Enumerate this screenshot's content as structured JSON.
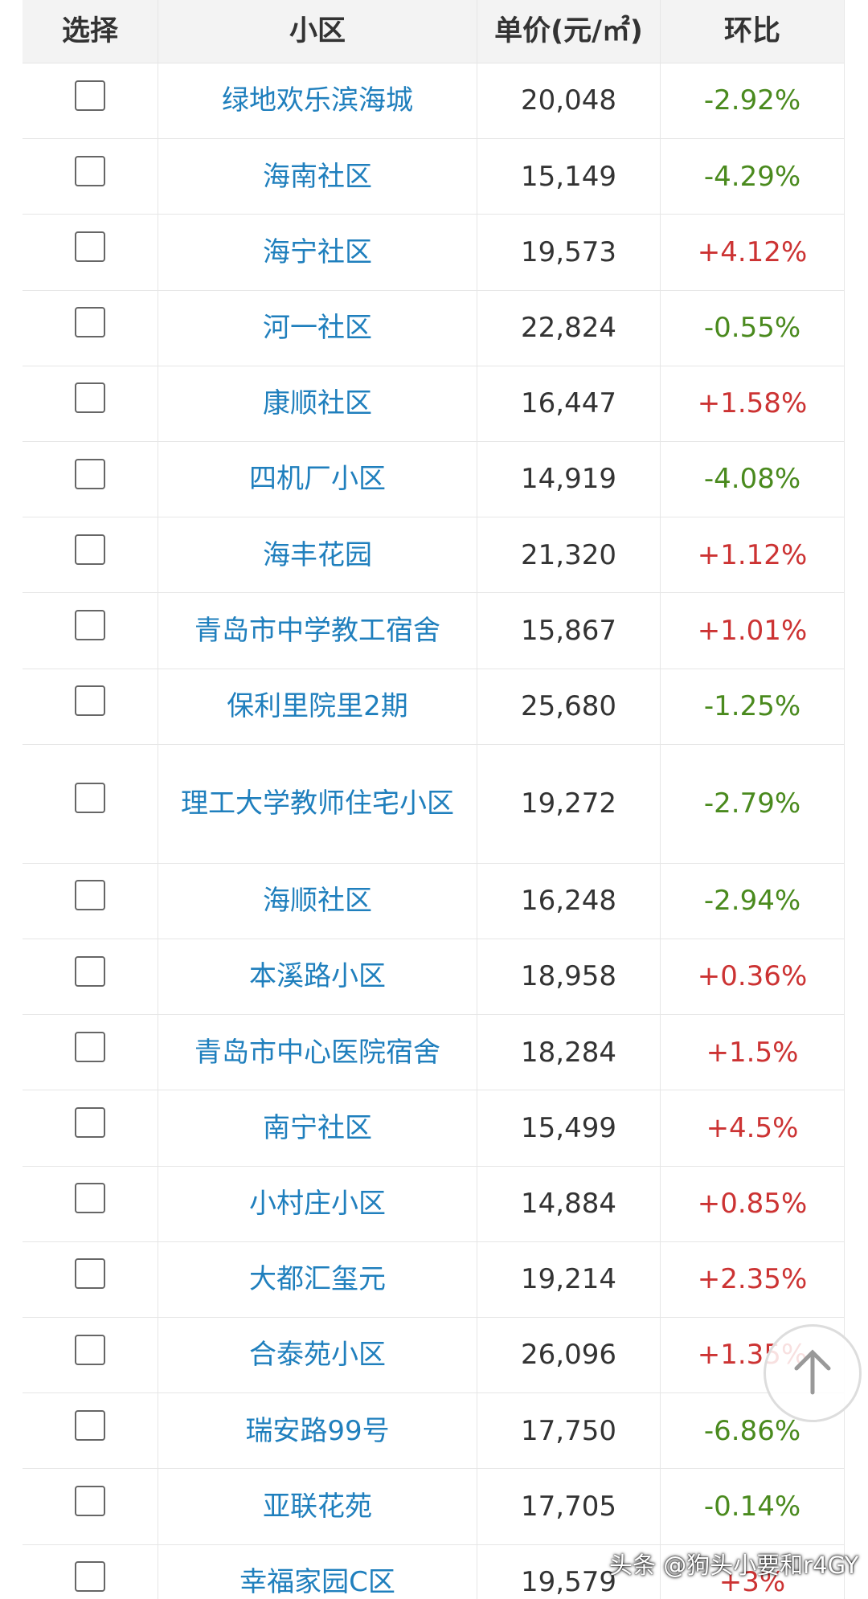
{
  "table": {
    "header": [
      "选择",
      "小区",
      "单价(元/㎡)",
      "环比"
    ],
    "rows": [
      [
        "绿地欢乐滨海城",
        "20,048",
        "-2.92%"
      ],
      [
        "海南社区",
        "15,149",
        "-4.29%"
      ],
      [
        "海宁社区",
        "19,573",
        "+4.12%"
      ],
      [
        "河一社区",
        "22,824",
        "-0.55%"
      ],
      [
        "康顺社区",
        "16,447",
        "+1.58%"
      ],
      [
        "四机厂小区",
        "14,919",
        "-4.08%"
      ],
      [
        "海丰花园",
        "21,320",
        "+1.12%"
      ],
      [
        "青岛市中学教工宿舍",
        "15,867",
        "+1.01%"
      ],
      [
        "保利里院里2期",
        "25,680",
        "-1.25%"
      ],
      [
        "理工大学教师住宅小区",
        "19,272",
        "-2.79%"
      ],
      [
        "海顺社区",
        "16,248",
        "-2.94%"
      ],
      [
        "本溪路小区",
        "18,958",
        "+0.36%"
      ],
      [
        "青岛市中心医院宿舍",
        "18,284",
        "+1.5%"
      ],
      [
        "南宁社区",
        "15,499",
        "+4.5%"
      ],
      [
        "小村庄小区",
        "14,884",
        "+0.85%"
      ],
      [
        "大都汇玺元",
        "19,214",
        "+2.35%"
      ],
      [
        "合泰苑小区",
        "26,096",
        "+1.35%"
      ],
      [
        "瑞安路99号",
        "17,750",
        "-6.86%"
      ],
      [
        "亚联花苑",
        "17,705",
        "-0.14%"
      ],
      [
        "幸福家园C区",
        "19,579",
        "+3%"
      ]
    ]
  },
  "watermark": "头条 @狗头小要和r4GY"
}
